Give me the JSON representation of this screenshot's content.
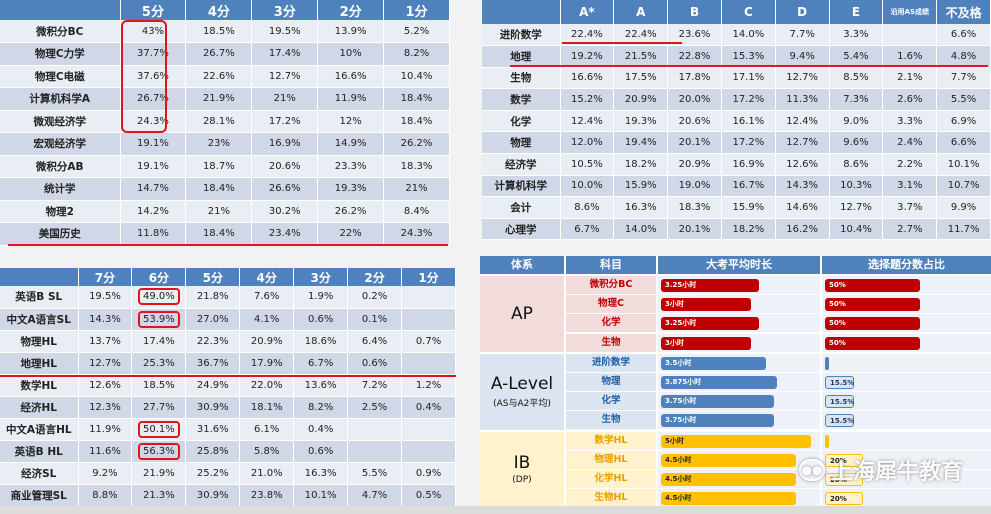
{
  "ap_table": {
    "headers": [
      "",
      "5分",
      "4分",
      "3分",
      "2分",
      "1分"
    ],
    "rows": [
      {
        "subject": "微积分BC",
        "values": [
          "43%",
          "18.5%",
          "19.5%",
          "13.9%",
          "5.2%"
        ]
      },
      {
        "subject": "物理C力学",
        "values": [
          "37.7%",
          "26.7%",
          "17.4%",
          "10%",
          "8.2%"
        ]
      },
      {
        "subject": "物理C电磁",
        "values": [
          "37.6%",
          "22.6%",
          "12.7%",
          "16.6%",
          "10.4%"
        ]
      },
      {
        "subject": "计算机科学A",
        "values": [
          "26.7%",
          "21.9%",
          "21%",
          "11.9%",
          "18.4%"
        ]
      },
      {
        "subject": "微观经济学",
        "values": [
          "24.3%",
          "28.1%",
          "17.2%",
          "12%",
          "18.4%"
        ]
      },
      {
        "subject": "宏观经济学",
        "values": [
          "19.1%",
          "23%",
          "16.9%",
          "14.9%",
          "26.2%"
        ]
      },
      {
        "subject": "微积分AB",
        "values": [
          "19.1%",
          "18.7%",
          "20.6%",
          "23.3%",
          "18.3%"
        ]
      },
      {
        "subject": "统计学",
        "values": [
          "14.7%",
          "18.4%",
          "26.6%",
          "19.3%",
          "21%"
        ]
      },
      {
        "subject": "物理2",
        "values": [
          "14.2%",
          "21%",
          "30.2%",
          "26.2%",
          "8.4%"
        ]
      },
      {
        "subject": "美国历史",
        "values": [
          "11.8%",
          "18.4%",
          "23.4%",
          "22%",
          "24.3%"
        ]
      }
    ]
  },
  "alevel_table": {
    "headers": [
      "",
      "A*",
      "A",
      "B",
      "C",
      "D",
      "E",
      "沿用AS成绩",
      "不及格"
    ],
    "rows": [
      {
        "subject": "进阶数学",
        "values": [
          "22.4%",
          "22.4%",
          "23.6%",
          "14.0%",
          "7.7%",
          "3.3%",
          "",
          "6.6%"
        ]
      },
      {
        "subject": "地理",
        "values": [
          "19.2%",
          "21.5%",
          "22.8%",
          "15.3%",
          "9.4%",
          "5.4%",
          "1.6%",
          "4.8%"
        ]
      },
      {
        "subject": "生物",
        "values": [
          "16.6%",
          "17.5%",
          "17.8%",
          "17.1%",
          "12.7%",
          "8.5%",
          "2.1%",
          "7.7%"
        ]
      },
      {
        "subject": "数学",
        "values": [
          "15.2%",
          "20.9%",
          "20.0%",
          "17.2%",
          "11.3%",
          "7.3%",
          "2.6%",
          "5.5%"
        ]
      },
      {
        "subject": "化学",
        "values": [
          "12.4%",
          "19.3%",
          "20.6%",
          "16.1%",
          "12.4%",
          "9.0%",
          "3.3%",
          "6.9%"
        ]
      },
      {
        "subject": "物理",
        "values": [
          "12.0%",
          "19.4%",
          "20.1%",
          "17.2%",
          "12.7%",
          "9.6%",
          "2.4%",
          "6.6%"
        ]
      },
      {
        "subject": "经济学",
        "values": [
          "10.5%",
          "18.2%",
          "20.9%",
          "16.9%",
          "12.6%",
          "8.6%",
          "2.2%",
          "10.1%"
        ]
      },
      {
        "subject": "计算机科学",
        "values": [
          "10.0%",
          "15.9%",
          "19.0%",
          "16.7%",
          "14.3%",
          "10.3%",
          "3.1%",
          "10.7%"
        ]
      },
      {
        "subject": "会计",
        "values": [
          "8.6%",
          "16.3%",
          "18.3%",
          "15.9%",
          "14.6%",
          "12.7%",
          "3.7%",
          "9.9%"
        ]
      },
      {
        "subject": "心理学",
        "values": [
          "6.7%",
          "14.0%",
          "20.1%",
          "18.2%",
          "16.2%",
          "10.4%",
          "2.7%",
          "11.7%"
        ]
      }
    ]
  },
  "ib_table": {
    "headers": [
      "",
      "7分",
      "6分",
      "5分",
      "4分",
      "3分",
      "2分",
      "1分"
    ],
    "rows": [
      {
        "subject": "英语B SL",
        "values": [
          "19.5%",
          "49.0%",
          "21.8%",
          "7.6%",
          "1.9%",
          "0.2%",
          ""
        ]
      },
      {
        "subject": "中文A语言SL",
        "values": [
          "14.3%",
          "53.9%",
          "27.0%",
          "4.1%",
          "0.6%",
          "0.1%",
          ""
        ]
      },
      {
        "subject": "物理HL",
        "values": [
          "13.7%",
          "17.4%",
          "22.3%",
          "20.9%",
          "18.6%",
          "6.4%",
          "0.7%"
        ]
      },
      {
        "subject": "地理HL",
        "values": [
          "12.7%",
          "25.3%",
          "36.7%",
          "17.9%",
          "6.7%",
          "0.6%",
          ""
        ]
      },
      {
        "subject": "数学HL",
        "values": [
          "12.6%",
          "18.5%",
          "24.9%",
          "22.0%",
          "13.6%",
          "7.2%",
          "1.2%"
        ]
      },
      {
        "subject": "经济HL",
        "values": [
          "12.3%",
          "27.7%",
          "30.9%",
          "18.1%",
          "8.2%",
          "2.5%",
          "0.4%"
        ]
      },
      {
        "subject": "中文A语言HL",
        "values": [
          "11.9%",
          "50.1%",
          "31.6%",
          "6.1%",
          "0.4%",
          "",
          ""
        ]
      },
      {
        "subject": "英语B HL",
        "values": [
          "11.6%",
          "56.3%",
          "25.8%",
          "5.8%",
          "0.6%",
          "",
          ""
        ]
      },
      {
        "subject": "经济SL",
        "values": [
          "9.2%",
          "21.9%",
          "25.2%",
          "21.0%",
          "16.3%",
          "5.5%",
          "0.9%"
        ]
      },
      {
        "subject": "商业管理SL",
        "values": [
          "8.8%",
          "21.3%",
          "30.9%",
          "23.8%",
          "10.1%",
          "4.7%",
          "0.5%"
        ]
      }
    ]
  },
  "comparison": {
    "headers": {
      "system": "体系",
      "subject": "科目",
      "duration": "大考平均时长",
      "mcq": "选择题分数占比"
    },
    "groups": [
      {
        "name": "AP",
        "sub": "",
        "type": "ap",
        "color": "#f2dcdb",
        "rows": [
          {
            "subject": "微积分BC",
            "duration": "3.25小时",
            "hours": 3.25,
            "mcq": "50%",
            "mcq_pct": 50
          },
          {
            "subject": "物理C",
            "duration": "3小时",
            "hours": 3,
            "mcq": "50%",
            "mcq_pct": 50
          },
          {
            "subject": "化学",
            "duration": "3.25小时",
            "hours": 3.25,
            "mcq": "50%",
            "mcq_pct": 50
          },
          {
            "subject": "生物",
            "duration": "3小时",
            "hours": 3,
            "mcq": "50%",
            "mcq_pct": 50
          }
        ]
      },
      {
        "name": "A-Level",
        "sub": "(AS与A2平均)",
        "type": "al",
        "color": "#dbe5f1",
        "rows": [
          {
            "subject": "进阶数学",
            "duration": "3.5小时",
            "hours": 3.5,
            "mcq": "",
            "mcq_pct": 0
          },
          {
            "subject": "物理",
            "duration": "3.875小时",
            "hours": 3.875,
            "mcq": "15.5%",
            "mcq_pct": 15.5
          },
          {
            "subject": "化学",
            "duration": "3.75小时",
            "hours": 3.75,
            "mcq": "15.5%",
            "mcq_pct": 15.5
          },
          {
            "subject": "生物",
            "duration": "3.75小时",
            "hours": 3.75,
            "mcq": "15.5%",
            "mcq_pct": 15.5
          }
        ]
      },
      {
        "name": "IB",
        "sub": "(DP)",
        "type": "ib",
        "color": "#fff2cc",
        "rows": [
          {
            "subject": "数学HL",
            "duration": "5小时",
            "hours": 5,
            "mcq": "",
            "mcq_pct": 0
          },
          {
            "subject": "物理HL",
            "duration": "4.5小时",
            "hours": 4.5,
            "mcq": "20%",
            "mcq_pct": 20
          },
          {
            "subject": "化学HL",
            "duration": "4.5小时",
            "hours": 4.5,
            "mcq": "20%",
            "mcq_pct": 20
          },
          {
            "subject": "生物HL",
            "duration": "4.5小时",
            "hours": 4.5,
            "mcq": "20%",
            "mcq_pct": 20
          }
        ]
      }
    ]
  },
  "watermark": {
    "text": "上海犀牛教育",
    "icon": "wechat-icon"
  },
  "colors": {
    "header_blue": "#4f81bd",
    "highlight_red": "#e0141e"
  }
}
